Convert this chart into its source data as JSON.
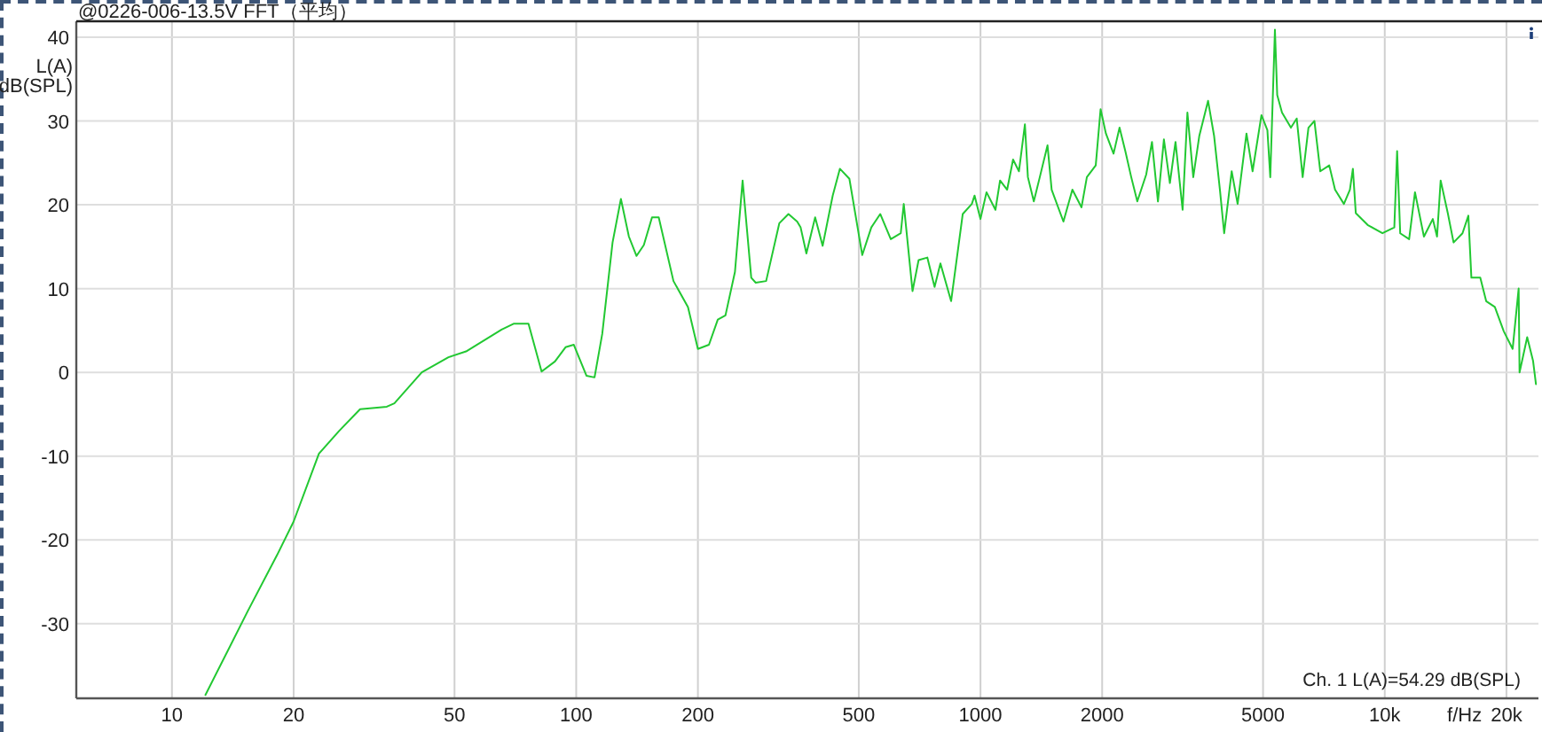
{
  "chart_data": {
    "type": "line",
    "title": "@0226-006-13.5V FFT（平均）",
    "xlabel": "f/Hz",
    "ylabel": "L(A)\ndB(SPL)",
    "annotations": [
      "Ch. 1 L(A)=54.29 dB(SPL)"
    ],
    "x": [
      12.1,
      15.4,
      18.2,
      20,
      23.1,
      25.9,
      29.2,
      34,
      35.5,
      41.5,
      48.3,
      53.4,
      65.4,
      70,
      76.2,
      82.1,
      88.6,
      94.1,
      98.6,
      106,
      111,
      116,
      123,
      129,
      135,
      141,
      147,
      154,
      160,
      174,
      189,
      200,
      213,
      224,
      234,
      247,
      258,
      271,
      278,
      295,
      318,
      335,
      352,
      359,
      371,
      390,
      407,
      431,
      449,
      474,
      510,
      537,
      565,
      600,
      635,
      646,
      679,
      703,
      739,
      770,
      796,
      846,
      904,
      952,
      967,
      1000,
      1035,
      1089,
      1118,
      1164,
      1204,
      1245,
      1288,
      1310,
      1355,
      1402,
      1465,
      1500,
      1604,
      1688,
      1778,
      1833,
      1928,
      1982,
      2043,
      2134,
      2208,
      2282,
      2360,
      2443,
      2570,
      2656,
      2748,
      2843,
      2941,
      3037,
      3162,
      3250,
      3360,
      3477,
      3656,
      3784,
      3911,
      4007,
      4182,
      4326,
      4550,
      4711,
      4955,
      5125,
      5210,
      5350,
      5420,
      5570,
      5860,
      6057,
      6266,
      6476,
      6700,
      6928,
      7290,
      7535,
      7925,
      8200,
      8340,
      8480,
      9070,
      9870,
      10560,
      10730,
      10920,
      11490,
      11880,
      12500,
      13150,
      13470,
      13750,
      14320,
      14800,
      15570,
      16100,
      16380,
      17230,
      17820,
      18720,
      19700,
      20720,
      21440,
      21550,
      22510,
      23270,
      23660
    ],
    "values": [
      -38.5,
      -28.5,
      -21.8,
      -17.8,
      -9.7,
      -7.0,
      -4.4,
      -4.1,
      -3.7,
      0.0,
      1.8,
      2.5,
      5.1,
      5.8,
      5.8,
      0.1,
      1.3,
      3.0,
      3.3,
      -0.4,
      -0.6,
      4.6,
      15.5,
      20.7,
      16.2,
      13.9,
      15.2,
      18.5,
      18.5,
      10.9,
      7.8,
      2.8,
      3.3,
      6.3,
      6.8,
      12.0,
      22.9,
      11.3,
      10.7,
      10.9,
      17.8,
      18.9,
      18.0,
      17.3,
      14.2,
      18.5,
      15.1,
      21.1,
      24.3,
      23.1,
      14.0,
      17.3,
      18.9,
      15.9,
      16.6,
      20.1,
      9.7,
      13.4,
      13.7,
      10.2,
      13.0,
      8.5,
      18.9,
      20.1,
      21.1,
      18.3,
      21.5,
      19.4,
      22.9,
      21.8,
      25.4,
      24.0,
      29.6,
      23.3,
      20.4,
      23.3,
      27.1,
      21.8,
      18.0,
      21.8,
      19.7,
      23.3,
      24.7,
      31.4,
      28.5,
      26.1,
      29.2,
      26.4,
      23.3,
      20.4,
      23.6,
      27.5,
      20.4,
      27.8,
      22.6,
      27.5,
      19.4,
      31.0,
      23.3,
      28.2,
      32.4,
      28.2,
      21.8,
      16.6,
      24.0,
      20.1,
      28.5,
      24.0,
      30.7,
      28.9,
      23.3,
      40.9,
      33.1,
      31.0,
      29.2,
      30.3,
      23.3,
      29.2,
      30.0,
      24.0,
      24.7,
      21.8,
      20.1,
      21.8,
      24.3,
      19.0,
      17.6,
      16.6,
      17.3,
      26.4,
      16.6,
      15.9,
      21.5,
      16.2,
      18.3,
      16.2,
      22.9,
      19.0,
      15.5,
      16.6,
      18.7,
      11.3,
      11.3,
      8.5,
      7.8,
      4.9,
      2.8,
      10.0,
      0.0,
      4.2,
      1.4,
      -1.4
    ],
    "color": "#22c832",
    "log": "x",
    "xlim": [
      5.8,
      24000
    ],
    "xticks": [
      10,
      20,
      50,
      100,
      200,
      500,
      1000,
      2000,
      5000,
      {
        "value": 10000,
        "label": "10k"
      },
      {
        "value": 20000,
        "label": "20k"
      }
    ],
    "ylim": [
      -38.9,
      41.9
    ],
    "yticks": [
      -30,
      -20,
      -10,
      0,
      10,
      20,
      30,
      40
    ],
    "grid": true
  }
}
